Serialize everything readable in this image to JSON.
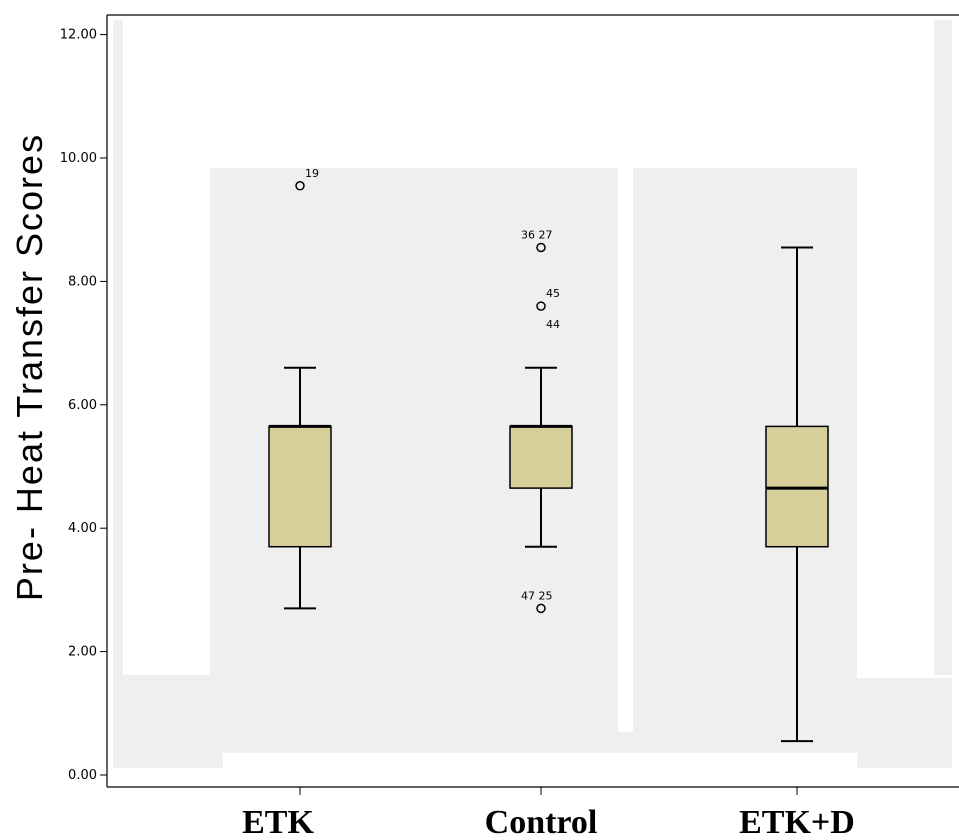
{
  "chart_data": {
    "type": "box",
    "title": "",
    "xlabel": "",
    "ylabel": "Pre- Heat Transfer Scores",
    "ylim": [
      0,
      12.4
    ],
    "yticks": [
      "0.00",
      "2.00",
      "4.00",
      "6.00",
      "8.00",
      "10.00",
      "12.00"
    ],
    "ytick_values": [
      0,
      2,
      4,
      6,
      8,
      10,
      12
    ],
    "categories": [
      "ETK",
      "Control",
      "ETK+D"
    ],
    "box_color": "#d7cf9a",
    "boxes": [
      {
        "category": "ETK",
        "whisker_low": 2.7,
        "q1": 3.7,
        "median": 5.65,
        "q3": 5.65,
        "whisker_high": 6.6,
        "outliers": [
          {
            "value": 9.55,
            "label": "19"
          }
        ]
      },
      {
        "category": "Control",
        "whisker_low": 3.7,
        "q1": 4.65,
        "median": 5.65,
        "q3": 5.65,
        "whisker_high": 6.6,
        "outliers": [
          {
            "value": 8.55,
            "label": "36 27"
          },
          {
            "value": 7.6,
            "label": "45",
            "label2": "44"
          },
          {
            "value": 2.7,
            "label": "47 25"
          }
        ]
      },
      {
        "category": "ETK+D",
        "whisker_low": 0.55,
        "q1": 3.7,
        "median": 4.65,
        "q3": 5.65,
        "whisker_high": 8.55,
        "outliers": []
      }
    ]
  }
}
